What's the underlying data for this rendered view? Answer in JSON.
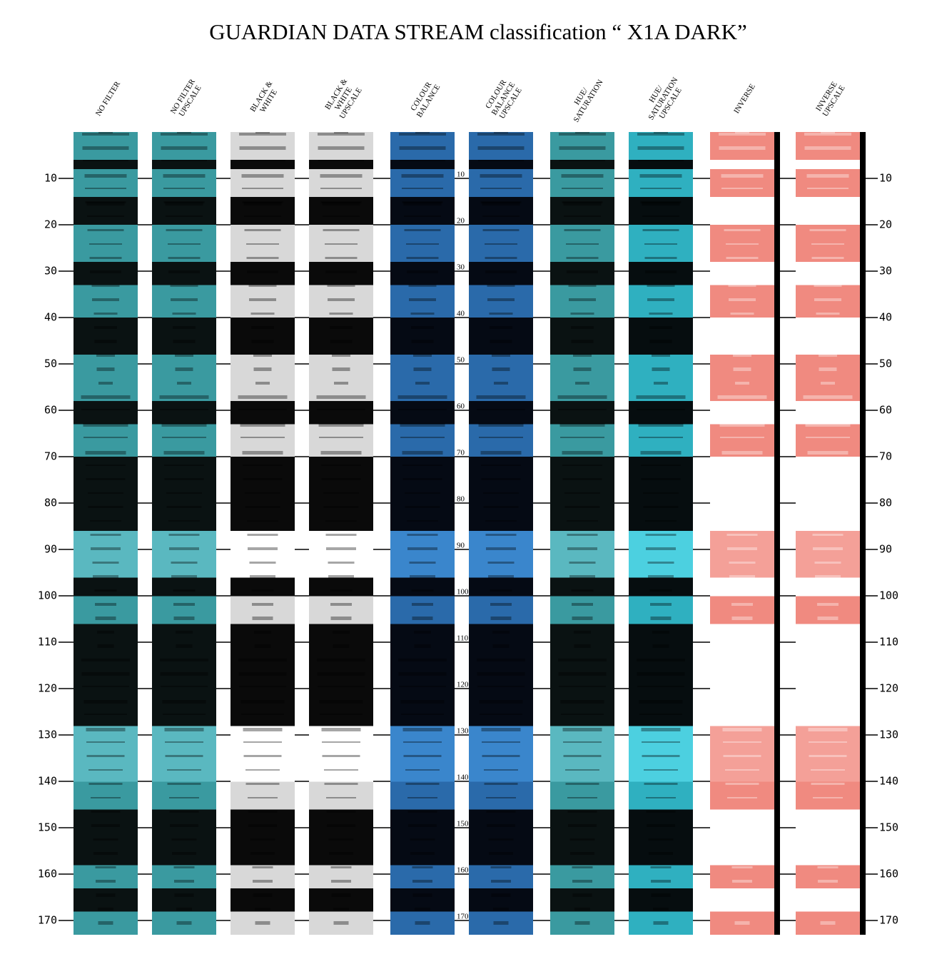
{
  "title": "GUARDIAN DATA STREAM classification “ X1A DARK”",
  "columns": [
    {
      "label": [
        "NO FILTER"
      ],
      "scheme": "teal"
    },
    {
      "label": [
        "NO FILTER",
        "UPSCALE"
      ],
      "scheme": "teal"
    },
    {
      "label": [
        "BLACK &",
        "WHITE"
      ],
      "scheme": "gray"
    },
    {
      "label": [
        "BLACK &",
        "WHITE",
        "UPSCALE"
      ],
      "scheme": "gray"
    },
    {
      "label": [
        "COLOUR",
        "BALANCE"
      ],
      "scheme": "blue"
    },
    {
      "label": [
        "COLOUR",
        "BALANCE",
        "UPSCALE"
      ],
      "scheme": "blue"
    },
    {
      "label": [
        "HUE/",
        "SATURATION"
      ],
      "scheme": "teal"
    },
    {
      "label": [
        "HUE/",
        "SATURATION",
        "UPSCALE"
      ],
      "scheme": "cyan"
    },
    {
      "label": [
        "INVERSE"
      ],
      "scheme": "inverse"
    },
    {
      "label": [
        "INVERSE",
        "UPSCALE"
      ],
      "scheme": "inverse"
    }
  ],
  "scale": [
    10,
    20,
    30,
    40,
    50,
    60,
    70,
    80,
    90,
    100,
    110,
    120,
    130,
    140,
    150,
    160,
    170
  ]
}
